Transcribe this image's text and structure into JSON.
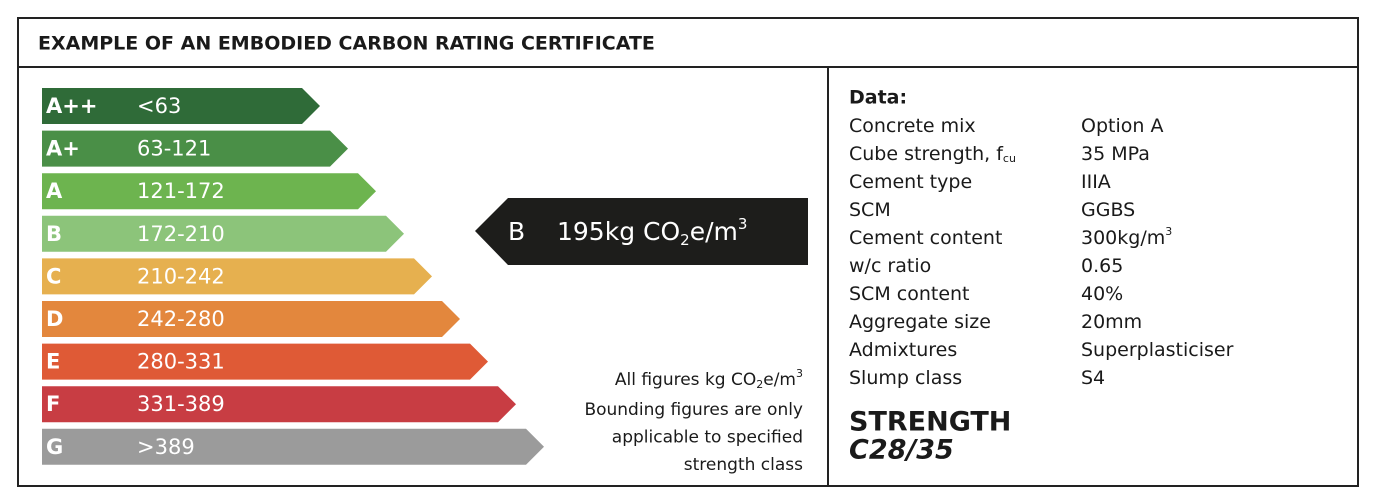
{
  "header": {
    "title": "EXAMPLE OF AN EMBODIED CARBON RATING CERTIFICATE"
  },
  "scale": {
    "bands": [
      {
        "label": "A++",
        "range": "<63",
        "color": "#2f6b38"
      },
      {
        "label": "A+",
        "range": "63-121",
        "color": "#4a8f47"
      },
      {
        "label": "A",
        "range": "121-172",
        "color": "#6db44f"
      },
      {
        "label": "B",
        "range": "172-210",
        "color": "#8cc47a"
      },
      {
        "label": "C",
        "range": "210-242",
        "color": "#e6b04f"
      },
      {
        "label": "D",
        "range": "242-280",
        "color": "#e3873d"
      },
      {
        "label": "E",
        "range": "280-331",
        "color": "#df5a36"
      },
      {
        "label": "F",
        "range": "331-389",
        "color": "#c83d43"
      },
      {
        "label": "G",
        "range": ">389",
        "color": "#9b9b9b"
      }
    ]
  },
  "rating": {
    "band": "B",
    "text": "195kg CO",
    "sub": "2",
    "text2": "e/m",
    "sup": "3"
  },
  "note": {
    "first": {
      "text": "All figures kg CO",
      "sub": "2",
      "text2": "e/m",
      "sup": "3"
    },
    "lines": [
      "Bounding figures are only",
      "applicable to specified",
      "strength class"
    ]
  },
  "data": {
    "heading": "Data:",
    "rows": [
      {
        "label": "Concrete mix",
        "value": "Option A"
      },
      {
        "label": "Cube strength, f",
        "label_sub": "cu",
        "value": "35 MPa"
      },
      {
        "label": "Cement type",
        "value": "IIIA"
      },
      {
        "label": "SCM",
        "value": "GGBS"
      },
      {
        "label": "Cement content",
        "value": "300kg/m",
        "value_sup": "3"
      },
      {
        "label": "w/c ratio",
        "value": "0.65"
      },
      {
        "label": "SCM content",
        "value": "40%"
      },
      {
        "label": "Aggregate size",
        "value": "20mm"
      },
      {
        "label": "Admixtures",
        "value": "Superplasticiser"
      },
      {
        "label": "Slump class",
        "value": "S4"
      }
    ]
  },
  "strength": {
    "heading": "STRENGTH",
    "class": "C28/35"
  }
}
